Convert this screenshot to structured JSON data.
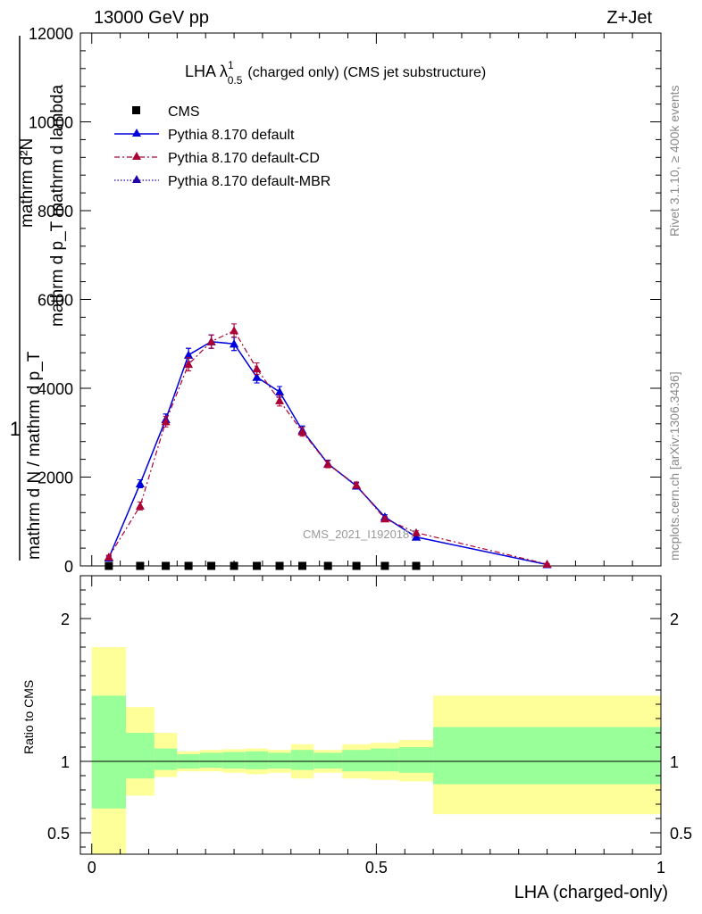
{
  "header": {
    "left": "13000 GeV pp",
    "right": "Z+Jet"
  },
  "title": {
    "main": "LHA λ",
    "sup": "1",
    "sub": "0.5",
    "rest": "(charged only) (CMS jet substructure)"
  },
  "side_labels": {
    "rivet": "Rivet 3.1.10, ≥ 400k events",
    "mcplots": "mcplots.cern.ch [arXiv:1306.3436]"
  },
  "watermark": "CMS_2021_I1920187",
  "colors": {
    "default": "#0000dd",
    "cd": "#aa0033",
    "mbr": "#2200aa",
    "band_inner": "#99ff99",
    "band_outer": "#ffff99"
  },
  "chart_data": [
    {
      "type": "line",
      "ylabel_numerator": "1",
      "ylabel_line1": "mathrm d²N",
      "ylabel_line2": "mathrm d p_T mathrm d lambda",
      "ylabel_line3": "mathrm d N / mathrm d p_T",
      "xlim": [
        -0.02,
        1.0
      ],
      "ylim": [
        0,
        12000
      ],
      "yticks": [
        0,
        2000,
        4000,
        6000,
        8000,
        10000,
        12000
      ],
      "ytick_labels": [
        "0",
        "2000",
        "4000",
        "6000",
        "8000",
        "10000",
        "12000"
      ],
      "legend_position": "top-left",
      "legend": [
        "CMS",
        "Pythia 8.170 default",
        "Pythia 8.170 default-CD",
        "Pythia 8.170 default-MBR"
      ],
      "cms": {
        "name": "CMS",
        "x": [
          0.03,
          0.085,
          0.13,
          0.17,
          0.21,
          0.25,
          0.29,
          0.33,
          0.37,
          0.415,
          0.465,
          0.515,
          0.57
        ],
        "y": [
          0,
          0,
          0,
          0,
          0,
          0,
          0,
          0,
          0,
          0,
          0,
          0,
          0
        ]
      },
      "series": [
        {
          "name": "Pythia 8.170 default",
          "x": [
            0.03,
            0.085,
            0.13,
            0.17,
            0.21,
            0.25,
            0.29,
            0.33,
            0.37,
            0.415,
            0.465,
            0.515,
            0.57,
            0.8
          ],
          "y": [
            180,
            1850,
            3300,
            4750,
            5050,
            5000,
            4250,
            3920,
            3050,
            2300,
            1800,
            1100,
            650,
            30
          ],
          "err": [
            40,
            90,
            120,
            150,
            150,
            150,
            130,
            120,
            100,
            80,
            70,
            50,
            40,
            10
          ]
        },
        {
          "name": "Pythia 8.170 default-CD",
          "x": [
            0.03,
            0.085,
            0.13,
            0.17,
            0.21,
            0.25,
            0.29,
            0.33,
            0.37,
            0.415,
            0.465,
            0.515,
            0.57,
            0.8
          ],
          "y": [
            200,
            1350,
            3250,
            4540,
            5050,
            5300,
            4440,
            3720,
            3020,
            2290,
            1820,
            1060,
            750,
            40
          ],
          "err": [
            40,
            90,
            120,
            150,
            150,
            150,
            130,
            120,
            100,
            80,
            70,
            50,
            40,
            10
          ]
        },
        {
          "name": "Pythia 8.170 default-MBR",
          "x": [
            0.03,
            0.085,
            0.13,
            0.17,
            0.21,
            0.25,
            0.29,
            0.33,
            0.37,
            0.415,
            0.465,
            0.515,
            0.57,
            0.8
          ],
          "y": [
            180,
            1850,
            3300,
            4750,
            5050,
            5000,
            4250,
            3920,
            3050,
            2300,
            1800,
            1100,
            650,
            30
          ],
          "err": [
            40,
            90,
            120,
            150,
            150,
            150,
            130,
            120,
            100,
            80,
            70,
            50,
            40,
            10
          ]
        }
      ]
    },
    {
      "type": "area",
      "ylabel": "Ratio to CMS",
      "xlabel": "LHA (charged-only)",
      "xlim": [
        -0.02,
        1.0
      ],
      "ylim": [
        0.35,
        2.3
      ],
      "yticks": [
        0.5,
        1,
        2
      ],
      "ytick_labels": [
        "0.5",
        "1",
        "2"
      ],
      "xticks": [
        0,
        0.5,
        1
      ],
      "xtick_labels": [
        "0",
        "0.5",
        "1"
      ],
      "bins": [
        {
          "lo": 0.0,
          "hi": 0.06,
          "inner": [
            0.67,
            1.46
          ],
          "outer": [
            0.35,
            1.8
          ]
        },
        {
          "lo": 0.06,
          "hi": 0.11,
          "inner": [
            0.88,
            1.2
          ],
          "outer": [
            0.76,
            1.38
          ]
        },
        {
          "lo": 0.11,
          "hi": 0.15,
          "inner": [
            0.94,
            1.09
          ],
          "outer": [
            0.89,
            1.2
          ]
        },
        {
          "lo": 0.15,
          "hi": 0.19,
          "inner": [
            0.95,
            1.05
          ],
          "outer": [
            0.93,
            1.07
          ]
        },
        {
          "lo": 0.19,
          "hi": 0.23,
          "inner": [
            0.955,
            1.06
          ],
          "outer": [
            0.93,
            1.08
          ]
        },
        {
          "lo": 0.23,
          "hi": 0.27,
          "inner": [
            0.95,
            1.065
          ],
          "outer": [
            0.92,
            1.085
          ]
        },
        {
          "lo": 0.27,
          "hi": 0.31,
          "inner": [
            0.945,
            1.07
          ],
          "outer": [
            0.91,
            1.09
          ]
        },
        {
          "lo": 0.31,
          "hi": 0.35,
          "inner": [
            0.95,
            1.06
          ],
          "outer": [
            0.92,
            1.08
          ]
        },
        {
          "lo": 0.35,
          "hi": 0.39,
          "inner": [
            0.94,
            1.08
          ],
          "outer": [
            0.88,
            1.12
          ]
        },
        {
          "lo": 0.39,
          "hi": 0.44,
          "inner": [
            0.95,
            1.06
          ],
          "outer": [
            0.92,
            1.08
          ]
        },
        {
          "lo": 0.44,
          "hi": 0.49,
          "inner": [
            0.93,
            1.08
          ],
          "outer": [
            0.88,
            1.12
          ]
        },
        {
          "lo": 0.49,
          "hi": 0.54,
          "inner": [
            0.93,
            1.09
          ],
          "outer": [
            0.87,
            1.13
          ]
        },
        {
          "lo": 0.54,
          "hi": 0.6,
          "inner": [
            0.92,
            1.1
          ],
          "outer": [
            0.86,
            1.15
          ]
        },
        {
          "lo": 0.6,
          "hi": 1.0,
          "inner": [
            0.84,
            1.24
          ],
          "outer": [
            0.63,
            1.46
          ]
        }
      ]
    }
  ]
}
